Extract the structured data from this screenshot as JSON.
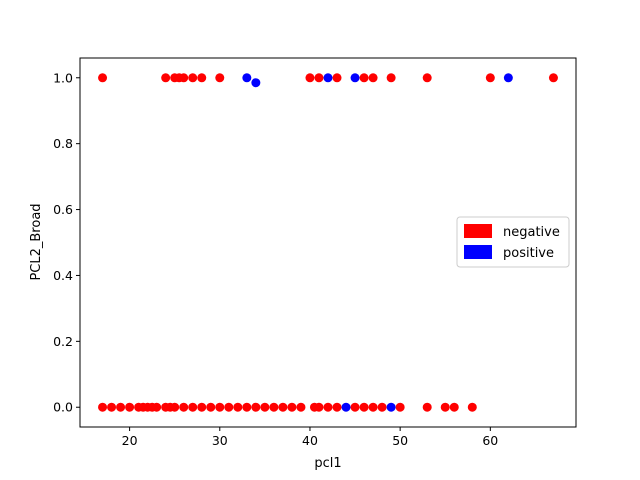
{
  "chart_data": {
    "type": "scatter",
    "title": "",
    "xlabel": "pcl1",
    "ylabel": "PCL2_Broad",
    "xlim": [
      14.5,
      69.5
    ],
    "ylim": [
      -0.06,
      1.06
    ],
    "xticks": [
      20,
      30,
      40,
      50,
      60
    ],
    "yticks": [
      0.0,
      0.2,
      0.4,
      0.6,
      0.8,
      1.0
    ],
    "xtick_labels": [
      "20",
      "30",
      "40",
      "50",
      "60"
    ],
    "ytick_labels": [
      "0.0",
      "0.2",
      "0.4",
      "0.6",
      "0.8",
      "1.0"
    ],
    "grid": false,
    "legend_position": "center-right",
    "series": [
      {
        "name": "negative",
        "color": "#ff0000",
        "points": [
          [
            17,
            1
          ],
          [
            24,
            1
          ],
          [
            25,
            1
          ],
          [
            25.5,
            1
          ],
          [
            26,
            1
          ],
          [
            27,
            1
          ],
          [
            28,
            1
          ],
          [
            30,
            1
          ],
          [
            40,
            1
          ],
          [
            41,
            1
          ],
          [
            43,
            1
          ],
          [
            46,
            1
          ],
          [
            47,
            1
          ],
          [
            49,
            1
          ],
          [
            53,
            1
          ],
          [
            60,
            1
          ],
          [
            67,
            1
          ],
          [
            17,
            0
          ],
          [
            18,
            0
          ],
          [
            19,
            0
          ],
          [
            20,
            0
          ],
          [
            21,
            0
          ],
          [
            21.5,
            0
          ],
          [
            22,
            0
          ],
          [
            22.5,
            0
          ],
          [
            23,
            0
          ],
          [
            24,
            0
          ],
          [
            24.5,
            0
          ],
          [
            25,
            0
          ],
          [
            26,
            0
          ],
          [
            27,
            0
          ],
          [
            28,
            0
          ],
          [
            29,
            0
          ],
          [
            30,
            0
          ],
          [
            31,
            0
          ],
          [
            32,
            0
          ],
          [
            33,
            0
          ],
          [
            34,
            0
          ],
          [
            35,
            0
          ],
          [
            36,
            0
          ],
          [
            37,
            0
          ],
          [
            38,
            0
          ],
          [
            39,
            0
          ],
          [
            40.5,
            0
          ],
          [
            41,
            0
          ],
          [
            42,
            0
          ],
          [
            43,
            0
          ],
          [
            45,
            0
          ],
          [
            46,
            0
          ],
          [
            47,
            0
          ],
          [
            48,
            0
          ],
          [
            50,
            0
          ],
          [
            53,
            0
          ],
          [
            55,
            0
          ],
          [
            56,
            0
          ],
          [
            58,
            0
          ]
        ]
      },
      {
        "name": "positive",
        "color": "#0000ff",
        "points": [
          [
            33,
            1
          ],
          [
            34,
            0.985
          ],
          [
            42,
            1
          ],
          [
            45,
            1
          ],
          [
            62,
            1
          ],
          [
            44,
            0
          ],
          [
            49,
            0
          ]
        ]
      }
    ]
  }
}
